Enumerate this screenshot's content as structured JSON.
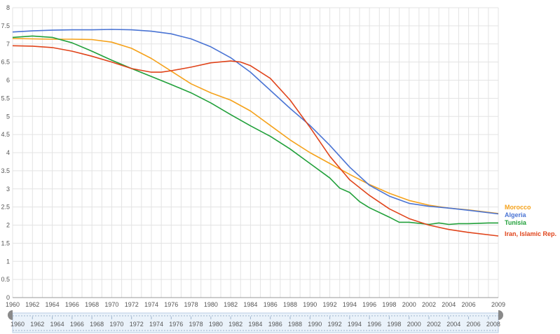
{
  "chart_data": {
    "type": "line",
    "title": "",
    "xlabel": "",
    "ylabel": "",
    "xlim": [
      1960,
      2009
    ],
    "ylim": [
      0,
      8
    ],
    "grid": true,
    "legend_position": "right",
    "x_ticks": [
      "1960",
      "1962",
      "1964",
      "1966",
      "1968",
      "1970",
      "1972",
      "1974",
      "1976",
      "1978",
      "1980",
      "1982",
      "1984",
      "1986",
      "1988",
      "1990",
      "1992",
      "1994",
      "1996",
      "1998",
      "2000",
      "2002",
      "2004",
      "2006",
      "2009"
    ],
    "y_ticks": [
      "0",
      "0.5",
      "1",
      "1.5",
      "2",
      "2.5",
      "3",
      "3.5",
      "4",
      "4.5",
      "5",
      "5.5",
      "6",
      "6.5",
      "7",
      "7.5",
      "8"
    ],
    "timeline_ticks": [
      "1960",
      "1962",
      "1964",
      "1966",
      "1968",
      "1970",
      "1972",
      "1974",
      "1976",
      "1978",
      "1980",
      "1982",
      "1984",
      "1986",
      "1988",
      "1990",
      "1992",
      "1994",
      "1996",
      "1998",
      "2000",
      "2002",
      "2004",
      "2006",
      "2008"
    ],
    "series": [
      {
        "name": "Morocco",
        "color": "#f5a21b",
        "points": [
          [
            1960,
            7.15
          ],
          [
            1962,
            7.14
          ],
          [
            1964,
            7.13
          ],
          [
            1966,
            7.13
          ],
          [
            1968,
            7.12
          ],
          [
            1970,
            7.05
          ],
          [
            1972,
            6.88
          ],
          [
            1974,
            6.6
          ],
          [
            1976,
            6.25
          ],
          [
            1978,
            5.9
          ],
          [
            1980,
            5.65
          ],
          [
            1982,
            5.45
          ],
          [
            1984,
            5.15
          ],
          [
            1986,
            4.75
          ],
          [
            1988,
            4.35
          ],
          [
            1990,
            4.0
          ],
          [
            1992,
            3.7
          ],
          [
            1994,
            3.4
          ],
          [
            1996,
            3.12
          ],
          [
            1998,
            2.88
          ],
          [
            2000,
            2.68
          ],
          [
            2002,
            2.55
          ],
          [
            2004,
            2.47
          ],
          [
            2006,
            2.42
          ],
          [
            2009,
            2.32
          ]
        ]
      },
      {
        "name": "Algeria",
        "color": "#4a74d4",
        "points": [
          [
            1960,
            7.33
          ],
          [
            1962,
            7.36
          ],
          [
            1964,
            7.38
          ],
          [
            1966,
            7.39
          ],
          [
            1968,
            7.39
          ],
          [
            1970,
            7.4
          ],
          [
            1972,
            7.39
          ],
          [
            1974,
            7.35
          ],
          [
            1976,
            7.28
          ],
          [
            1978,
            7.14
          ],
          [
            1980,
            6.92
          ],
          [
            1982,
            6.62
          ],
          [
            1984,
            6.22
          ],
          [
            1986,
            5.72
          ],
          [
            1988,
            5.22
          ],
          [
            1990,
            4.75
          ],
          [
            1992,
            4.2
          ],
          [
            1994,
            3.6
          ],
          [
            1996,
            3.1
          ],
          [
            1998,
            2.8
          ],
          [
            2000,
            2.6
          ],
          [
            2002,
            2.52
          ],
          [
            2004,
            2.47
          ],
          [
            2006,
            2.41
          ],
          [
            2009,
            2.31
          ]
        ]
      },
      {
        "name": "Tunisia",
        "color": "#21a03a",
        "points": [
          [
            1960,
            7.18
          ],
          [
            1962,
            7.22
          ],
          [
            1964,
            7.18
          ],
          [
            1966,
            7.03
          ],
          [
            1968,
            6.8
          ],
          [
            1970,
            6.55
          ],
          [
            1972,
            6.32
          ],
          [
            1974,
            6.1
          ],
          [
            1976,
            5.88
          ],
          [
            1978,
            5.65
          ],
          [
            1980,
            5.37
          ],
          [
            1982,
            5.05
          ],
          [
            1984,
            4.74
          ],
          [
            1986,
            4.45
          ],
          [
            1988,
            4.1
          ],
          [
            1990,
            3.7
          ],
          [
            1992,
            3.3
          ],
          [
            1993,
            3.02
          ],
          [
            1994,
            2.9
          ],
          [
            1995,
            2.65
          ],
          [
            1996,
            2.48
          ],
          [
            1998,
            2.22
          ],
          [
            1999,
            2.08
          ],
          [
            2000,
            2.08
          ],
          [
            2002,
            2.02
          ],
          [
            2003,
            2.06
          ],
          [
            2004,
            2.02
          ],
          [
            2005,
            2.04
          ],
          [
            2006,
            2.04
          ],
          [
            2008,
            2.06
          ],
          [
            2009,
            2.06
          ]
        ]
      },
      {
        "name": "Iran, Islamic Rep.",
        "color": "#e0441b",
        "points": [
          [
            1960,
            6.95
          ],
          [
            1962,
            6.94
          ],
          [
            1964,
            6.9
          ],
          [
            1966,
            6.8
          ],
          [
            1968,
            6.66
          ],
          [
            1970,
            6.5
          ],
          [
            1972,
            6.32
          ],
          [
            1974,
            6.22
          ],
          [
            1975,
            6.22
          ],
          [
            1976,
            6.26
          ],
          [
            1978,
            6.36
          ],
          [
            1980,
            6.48
          ],
          [
            1982,
            6.53
          ],
          [
            1983,
            6.5
          ],
          [
            1984,
            6.4
          ],
          [
            1986,
            6.05
          ],
          [
            1988,
            5.45
          ],
          [
            1990,
            4.7
          ],
          [
            1992,
            3.9
          ],
          [
            1994,
            3.25
          ],
          [
            1996,
            2.82
          ],
          [
            1998,
            2.45
          ],
          [
            2000,
            2.18
          ],
          [
            2002,
            2.0
          ],
          [
            2004,
            1.88
          ],
          [
            2006,
            1.8
          ],
          [
            2009,
            1.7
          ]
        ]
      }
    ]
  }
}
